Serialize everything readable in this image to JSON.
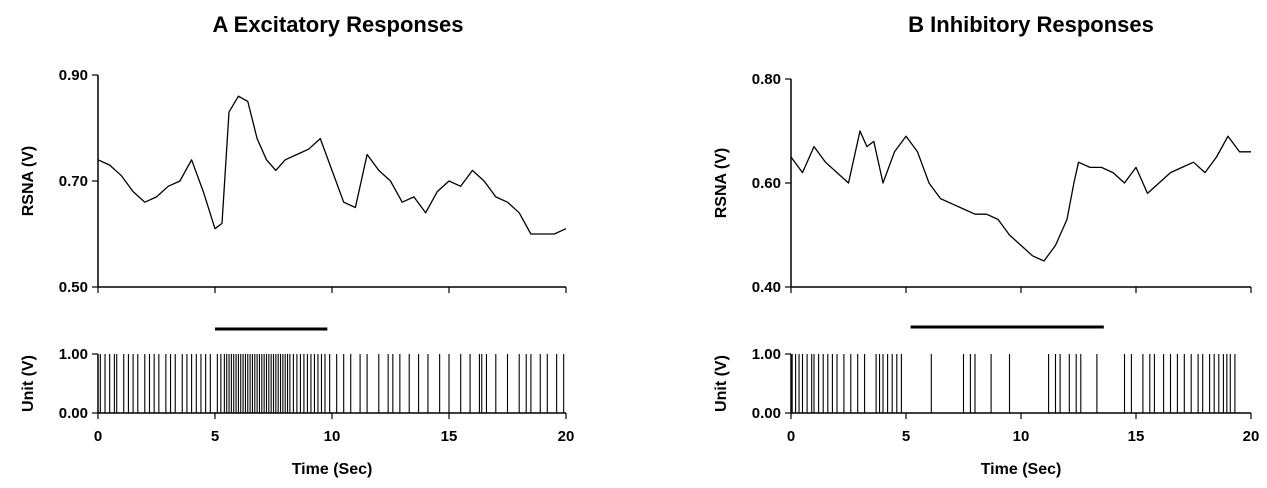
{
  "chart_data": [
    {
      "type": "line",
      "panel": "A",
      "title": "A  Excitatory Responses",
      "xlabel": "Time (Sec)",
      "ylabel": "RSNA (V)",
      "ylabel_units": "Unit (V)",
      "xlim": [
        0,
        20
      ],
      "ylim": [
        0.5,
        0.9
      ],
      "x_ticks": [
        0,
        5,
        10,
        15,
        20
      ],
      "y_ticks": [
        "0.50",
        "0.70",
        "0.90"
      ],
      "unit_ticks": [
        "0.00",
        "1.00"
      ],
      "stimulus_bar": [
        5.0,
        9.8
      ],
      "series": [
        {
          "x": [
            0,
            0.5,
            1.0,
            1.5,
            2.0,
            2.5,
            3.0,
            3.5,
            4.0,
            4.5,
            5.0,
            5.3,
            5.6,
            6.0,
            6.4,
            6.8,
            7.2,
            7.6,
            8.0,
            8.5,
            9.0,
            9.5,
            10.0,
            10.5,
            11.0,
            11.5,
            12.0,
            12.5,
            13.0,
            13.5,
            14.0,
            14.5,
            15.0,
            15.5,
            16.0,
            16.5,
            17.0,
            17.5,
            18.0,
            18.5,
            19.0,
            19.5,
            20.0
          ],
          "y": [
            0.74,
            0.73,
            0.71,
            0.68,
            0.66,
            0.67,
            0.69,
            0.7,
            0.74,
            0.68,
            0.61,
            0.62,
            0.83,
            0.86,
            0.85,
            0.78,
            0.74,
            0.72,
            0.74,
            0.75,
            0.76,
            0.78,
            0.72,
            0.66,
            0.65,
            0.75,
            0.72,
            0.7,
            0.66,
            0.67,
            0.64,
            0.68,
            0.7,
            0.69,
            0.72,
            0.7,
            0.67,
            0.66,
            0.64,
            0.6,
            0.6,
            0.6,
            0.61
          ]
        }
      ],
      "unit_spikes": [
        0.1,
        0.3,
        0.5,
        0.7,
        0.8,
        1.1,
        1.3,
        1.5,
        1.7,
        2.0,
        2.2,
        2.4,
        2.6,
        2.9,
        3.1,
        3.3,
        3.6,
        3.8,
        4.0,
        4.2,
        4.4,
        4.6,
        4.8,
        5.1,
        5.25,
        5.4,
        5.5,
        5.6,
        5.7,
        5.8,
        5.9,
        6.0,
        6.1,
        6.2,
        6.3,
        6.4,
        6.5,
        6.6,
        6.7,
        6.8,
        6.9,
        7.0,
        7.1,
        7.2,
        7.3,
        7.4,
        7.5,
        7.6,
        7.7,
        7.8,
        7.9,
        8.0,
        8.1,
        8.2,
        8.35,
        8.5,
        8.65,
        8.8,
        8.95,
        9.1,
        9.25,
        9.4,
        9.55,
        9.7,
        9.9,
        10.2,
        10.5,
        10.8,
        11.2,
        11.5,
        12.0,
        12.4,
        12.6,
        12.9,
        13.3,
        13.7,
        14.1,
        14.6,
        15.0,
        15.5,
        15.9,
        16.3,
        16.4,
        16.6,
        17.0,
        17.5,
        18.0,
        18.3,
        18.5,
        18.9,
        19.2,
        19.6,
        19.9
      ]
    },
    {
      "type": "line",
      "panel": "B",
      "title": "B  Inhibitory Responses",
      "xlabel": "Time (Sec)",
      "ylabel": "RSNA (V)",
      "ylabel_units": "Unit (V)",
      "xlim": [
        0,
        20
      ],
      "ylim": [
        0.4,
        0.8
      ],
      "x_ticks": [
        0,
        5,
        10,
        15,
        20
      ],
      "y_ticks": [
        "0.40",
        "0.60",
        "0.80"
      ],
      "unit_ticks": [
        "0.00",
        "1.00"
      ],
      "stimulus_bar": [
        5.2,
        13.6
      ],
      "series": [
        {
          "x": [
            0,
            0.5,
            1.0,
            1.5,
            2.0,
            2.5,
            3.0,
            3.3,
            3.6,
            4.0,
            4.5,
            5.0,
            5.5,
            6.0,
            6.5,
            7.0,
            7.5,
            8.0,
            8.5,
            9.0,
            9.5,
            10.0,
            10.5,
            11.0,
            11.5,
            12.0,
            12.3,
            12.5,
            13.0,
            13.5,
            14.0,
            14.5,
            15.0,
            15.5,
            16.0,
            16.5,
            17.0,
            17.5,
            18.0,
            18.5,
            19.0,
            19.5,
            20.0
          ],
          "y": [
            0.65,
            0.62,
            0.67,
            0.64,
            0.62,
            0.6,
            0.7,
            0.67,
            0.68,
            0.6,
            0.66,
            0.69,
            0.66,
            0.6,
            0.57,
            0.56,
            0.55,
            0.54,
            0.54,
            0.53,
            0.5,
            0.48,
            0.46,
            0.45,
            0.48,
            0.53,
            0.6,
            0.64,
            0.63,
            0.63,
            0.62,
            0.6,
            0.63,
            0.58,
            0.6,
            0.62,
            0.63,
            0.64,
            0.62,
            0.65,
            0.69,
            0.66,
            0.66
          ]
        }
      ],
      "unit_spikes": [
        0.05,
        0.2,
        0.35,
        0.5,
        0.7,
        0.9,
        1.0,
        1.2,
        1.4,
        1.6,
        1.8,
        2.0,
        2.3,
        2.6,
        2.9,
        3.2,
        3.7,
        3.85,
        4.0,
        4.2,
        4.4,
        4.6,
        4.8,
        6.1,
        7.5,
        7.8,
        8.0,
        8.7,
        9.5,
        11.2,
        11.5,
        11.7,
        12.1,
        12.4,
        12.6,
        13.3,
        14.5,
        14.8,
        15.3,
        15.6,
        15.8,
        16.2,
        16.5,
        16.8,
        17.1,
        17.4,
        17.7,
        17.9,
        18.2,
        18.4,
        18.6,
        18.8,
        18.95,
        19.1,
        19.3
      ]
    }
  ]
}
